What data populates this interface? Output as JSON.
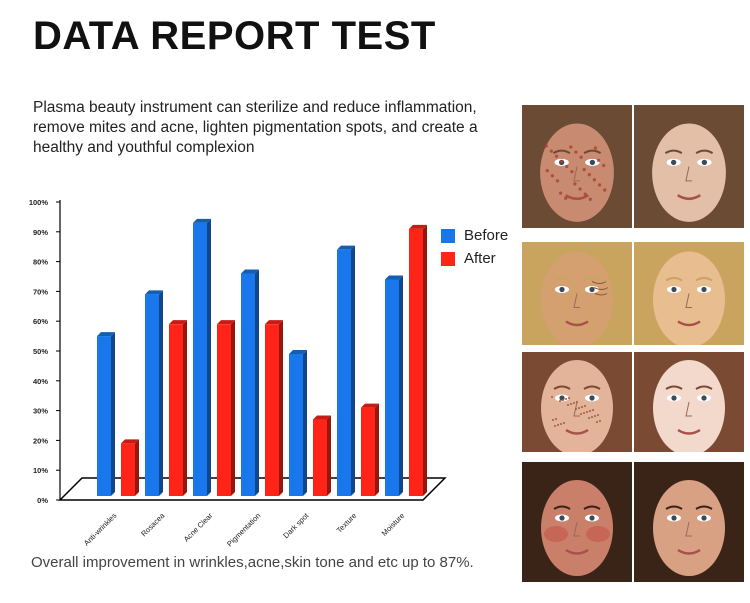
{
  "header": {
    "title": "DATA REPORT TEST",
    "description": "Plasma beauty instrument can sterilize and reduce inflammation, remove mites and acne, lighten pigmentation spots, and create a healthy and youthful complexion"
  },
  "caption": "Overall improvement in wrinkles,acne,skin tone and etc up to 87%.",
  "chart_data": {
    "type": "bar",
    "categories": [
      "Anti-wrinkles",
      "Rosacea",
      "Acne Clear",
      "Pigmentation",
      "Dark spot",
      "Texture",
      "Moisture"
    ],
    "series": [
      {
        "name": "Before",
        "color": "#1877ea",
        "values": [
          55,
          69,
          93,
          76,
          49,
          84,
          74
        ]
      },
      {
        "name": "After",
        "color": "#ff2418",
        "values": [
          19,
          59,
          59,
          59,
          27,
          31,
          91
        ]
      }
    ],
    "yticks": [
      "0%",
      "10%",
      "20%",
      "30%",
      "40%",
      "50%",
      "60%",
      "70%",
      "80%",
      "90%",
      "100%"
    ],
    "ylim": [
      0,
      100
    ],
    "legend_position": "right"
  },
  "photos": [
    {
      "before_icon": "face-acne-before-icon",
      "after_icon": "face-clear-after-icon",
      "before_skin": "#c98a72",
      "after_skin": "#e3bfa8",
      "hair": "#6b4b33"
    },
    {
      "before_icon": "face-wrinkles-before-icon",
      "after_icon": "face-smooth-after-icon",
      "before_skin": "#d4a070",
      "after_skin": "#e8bd8f",
      "hair": "#c9a45f"
    },
    {
      "before_icon": "face-freckles-before-icon",
      "after_icon": "face-even-after-icon",
      "before_skin": "#e3b39a",
      "after_skin": "#f3d8cc",
      "hair": "#7a4a32"
    },
    {
      "before_icon": "face-redness-before-icon",
      "after_icon": "face-calm-after-icon",
      "before_skin": "#c97f6a",
      "after_skin": "#d9a183",
      "hair": "#3a2418"
    }
  ]
}
